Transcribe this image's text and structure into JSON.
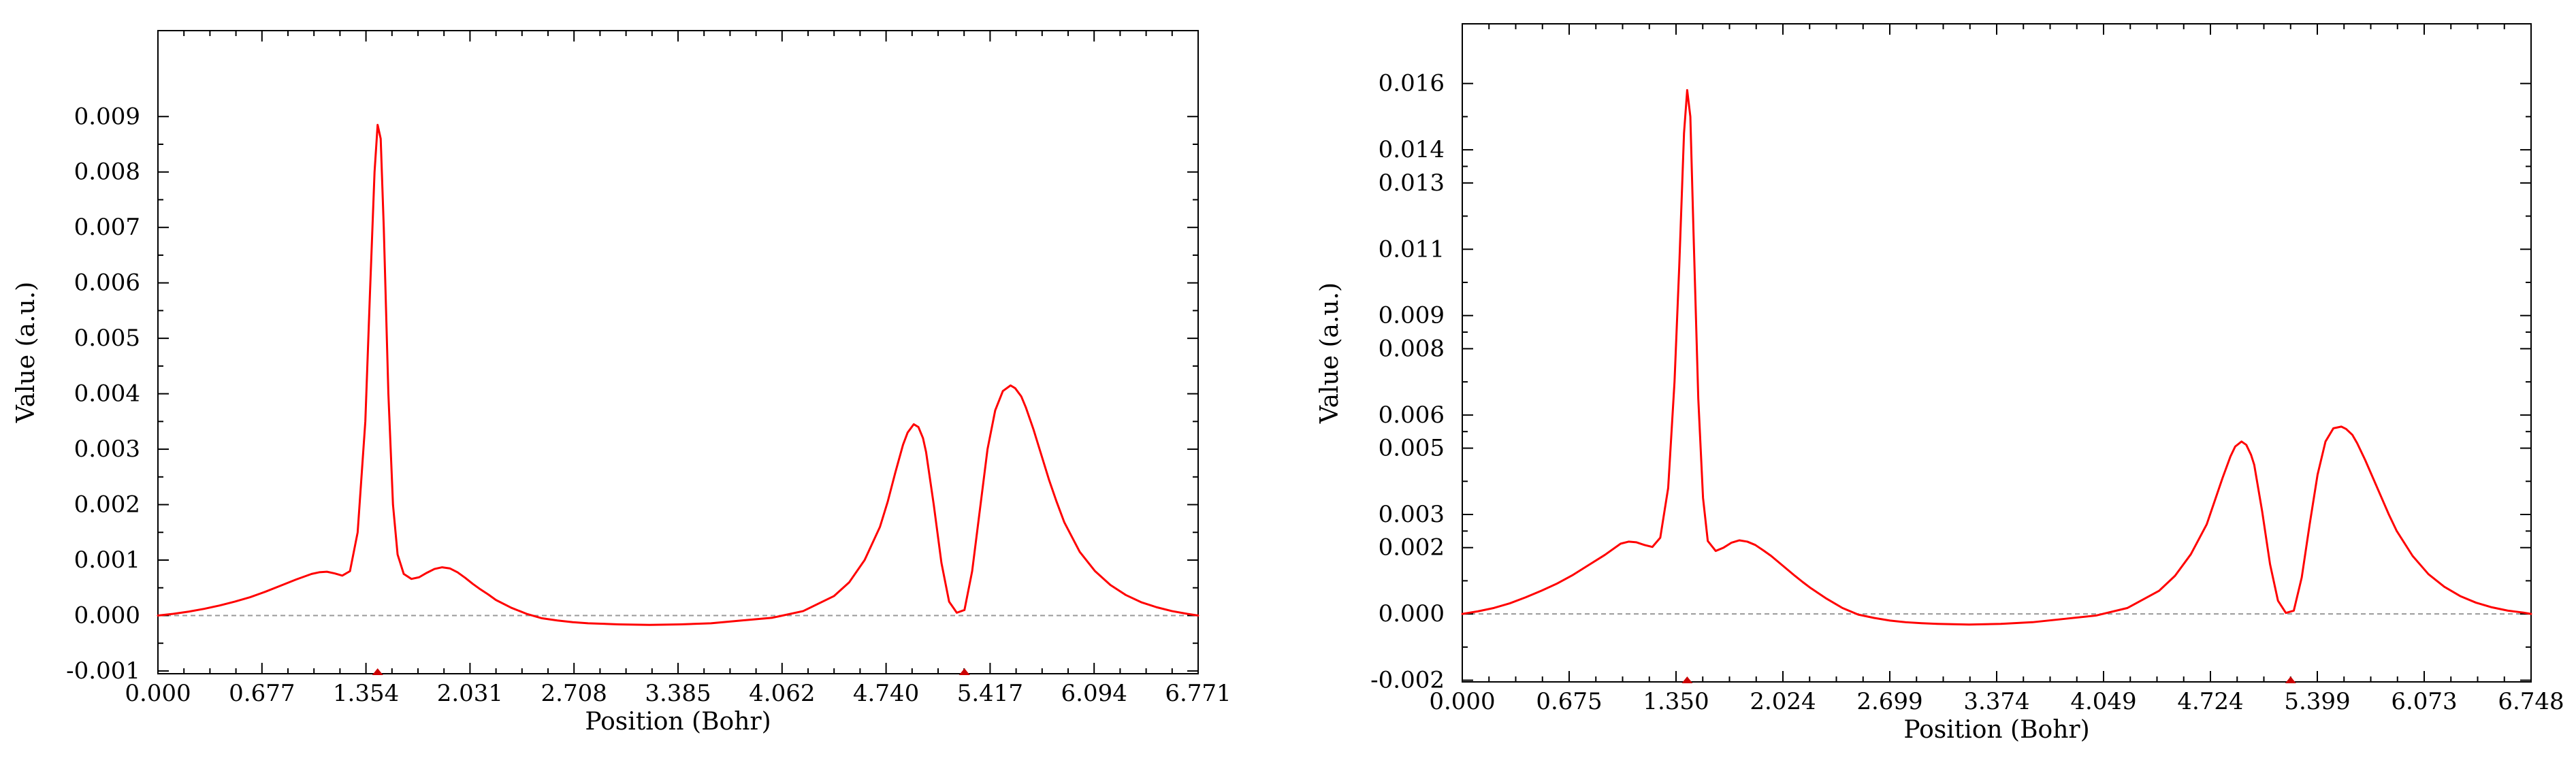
{
  "colors": {
    "curve": "#ff0000",
    "axis": "#000000",
    "zero_line": "#999999",
    "marker": "#cc0000",
    "background": "#ffffff"
  },
  "chart_data": [
    {
      "type": "line",
      "title": "",
      "xlabel": "Position (Bohr)",
      "ylabel": "Value (a.u.)",
      "xlim": [
        0,
        6.771
      ],
      "ylim": [
        -0.00105,
        0.01055
      ],
      "x_tick_labels": [
        "0.000",
        "0.677",
        "1.354",
        "2.031",
        "2.708",
        "3.385",
        "4.062",
        "4.740",
        "5.417",
        "6.094",
        "6.771"
      ],
      "y_ticks": [
        -0.001,
        0.0,
        0.001,
        0.002,
        0.003,
        0.004,
        0.005,
        0.006,
        0.007,
        0.008,
        0.009
      ],
      "y_tick_labels": [
        "-0.001",
        "0.000",
        "0.001",
        "0.002",
        "0.003",
        "0.004",
        "0.005",
        "0.006",
        "0.007",
        "0.008",
        "0.009"
      ],
      "zero_line": 0.0,
      "atom_markers_x": [
        1.43,
        5.25
      ],
      "series": [
        {
          "name": "profile",
          "x": [
            0.0,
            0.1,
            0.2,
            0.3,
            0.4,
            0.5,
            0.6,
            0.7,
            0.8,
            0.9,
            1.0,
            1.05,
            1.1,
            1.15,
            1.2,
            1.25,
            1.3,
            1.35,
            1.38,
            1.41,
            1.43,
            1.45,
            1.47,
            1.5,
            1.53,
            1.56,
            1.6,
            1.65,
            1.7,
            1.75,
            1.8,
            1.85,
            1.9,
            1.95,
            2.0,
            2.05,
            2.1,
            2.15,
            2.2,
            2.3,
            2.4,
            2.5,
            2.6,
            2.7,
            2.8,
            2.9,
            3.0,
            3.2,
            3.4,
            3.6,
            3.8,
            4.0,
            4.2,
            4.4,
            4.5,
            4.6,
            4.7,
            4.75,
            4.8,
            4.85,
            4.88,
            4.92,
            4.95,
            4.98,
            5.0,
            5.05,
            5.1,
            5.15,
            5.2,
            5.25,
            5.3,
            5.35,
            5.4,
            5.45,
            5.5,
            5.55,
            5.58,
            5.62,
            5.65,
            5.7,
            5.75,
            5.8,
            5.85,
            5.9,
            6.0,
            6.1,
            6.2,
            6.3,
            6.4,
            6.5,
            6.6,
            6.7,
            6.771
          ],
          "y": [
            0.0,
            3e-05,
            7e-05,
            0.00012,
            0.00018,
            0.00025,
            0.00033,
            0.00043,
            0.00054,
            0.00065,
            0.00075,
            0.00078,
            0.00079,
            0.00076,
            0.00072,
            0.0008,
            0.0015,
            0.0035,
            0.0058,
            0.008,
            0.00885,
            0.0086,
            0.007,
            0.004,
            0.002,
            0.0011,
            0.00075,
            0.00066,
            0.00069,
            0.00077,
            0.00084,
            0.00087,
            0.00085,
            0.00078,
            0.00068,
            0.00057,
            0.00047,
            0.00038,
            0.00028,
            0.00014,
            3e-05,
            -5e-05,
            -9e-05,
            -0.00012,
            -0.00014,
            -0.00015,
            -0.00016,
            -0.00017,
            -0.00016,
            -0.00014,
            -9e-05,
            -4e-05,
            8e-05,
            0.00035,
            0.0006,
            0.001,
            0.0016,
            0.00205,
            0.00258,
            0.00308,
            0.0033,
            0.00345,
            0.0034,
            0.0032,
            0.00295,
            0.002,
            0.00095,
            0.00025,
            5e-05,
            0.0001,
            0.0008,
            0.0019,
            0.003,
            0.0037,
            0.00405,
            0.00415,
            0.0041,
            0.00395,
            0.00375,
            0.00335,
            0.0029,
            0.00245,
            0.00205,
            0.00168,
            0.00115,
            0.0008,
            0.00055,
            0.00037,
            0.00024,
            0.00015,
            8e-05,
            3e-05,
            0.0
          ]
        }
      ]
    },
    {
      "type": "line",
      "title": "",
      "xlabel": "Position (Bohr)",
      "ylabel": "Value (a.u.)",
      "xlim": [
        0,
        6.748
      ],
      "ylim": [
        -0.00205,
        0.0178
      ],
      "x_tick_labels": [
        "0.000",
        "0.675",
        "1.350",
        "2.024",
        "2.699",
        "3.374",
        "4.049",
        "4.724",
        "5.399",
        "6.073",
        "6.748"
      ],
      "y_ticks": [
        -0.002,
        0.0,
        0.002,
        0.003,
        0.005,
        0.006,
        0.008,
        0.009,
        0.011,
        0.013,
        0.014,
        0.016
      ],
      "y_tick_labels": [
        "-0.002",
        "0.000",
        "0.002",
        "0.003",
        "0.005",
        "0.006",
        "0.008",
        "0.009",
        "0.011",
        "0.013",
        "0.014",
        "0.016"
      ],
      "zero_line": 0.0,
      "atom_markers_x": [
        1.42,
        5.23
      ],
      "series": [
        {
          "name": "profile",
          "x": [
            0.0,
            0.1,
            0.2,
            0.3,
            0.4,
            0.5,
            0.6,
            0.7,
            0.8,
            0.9,
            1.0,
            1.05,
            1.1,
            1.15,
            1.2,
            1.25,
            1.3,
            1.34,
            1.37,
            1.4,
            1.42,
            1.44,
            1.46,
            1.49,
            1.52,
            1.55,
            1.6,
            1.65,
            1.7,
            1.75,
            1.8,
            1.85,
            1.9,
            1.95,
            2.0,
            2.05,
            2.1,
            2.15,
            2.2,
            2.3,
            2.4,
            2.5,
            2.6,
            2.7,
            2.8,
            2.9,
            3.0,
            3.2,
            3.4,
            3.6,
            3.8,
            4.0,
            4.2,
            4.4,
            4.5,
            4.6,
            4.7,
            4.75,
            4.8,
            4.85,
            4.88,
            4.92,
            4.95,
            4.98,
            5.0,
            5.05,
            5.1,
            5.15,
            5.2,
            5.25,
            5.3,
            5.35,
            5.4,
            5.45,
            5.5,
            5.55,
            5.58,
            5.62,
            5.65,
            5.7,
            5.75,
            5.8,
            5.85,
            5.9,
            6.0,
            6.1,
            6.2,
            6.3,
            6.4,
            6.5,
            6.6,
            6.7,
            6.748
          ],
          "y": [
            0.0,
            8e-05,
            0.00018,
            0.00032,
            0.0005,
            0.0007,
            0.00092,
            0.00118,
            0.00148,
            0.00178,
            0.00212,
            0.00218,
            0.00216,
            0.00208,
            0.00202,
            0.0023,
            0.0038,
            0.007,
            0.0105,
            0.0145,
            0.0158,
            0.015,
            0.0115,
            0.0065,
            0.0035,
            0.0022,
            0.0019,
            0.002,
            0.00215,
            0.00222,
            0.00218,
            0.00208,
            0.00192,
            0.00175,
            0.00155,
            0.00135,
            0.00115,
            0.00096,
            0.00078,
            0.00046,
            0.00018,
            -2e-05,
            -0.00012,
            -0.0002,
            -0.00025,
            -0.00028,
            -0.0003,
            -0.00032,
            -0.0003,
            -0.00025,
            -0.00015,
            -5e-05,
            0.00018,
            0.0007,
            0.00115,
            0.0018,
            0.0027,
            0.0034,
            0.0041,
            0.00475,
            0.00505,
            0.0052,
            0.0051,
            0.0048,
            0.0045,
            0.0031,
            0.0015,
            0.0004,
            3e-05,
            0.0001,
            0.0011,
            0.0027,
            0.0042,
            0.0052,
            0.0056,
            0.00565,
            0.00558,
            0.0054,
            0.00515,
            0.00465,
            0.0041,
            0.00355,
            0.003,
            0.0025,
            0.00175,
            0.0012,
            0.00082,
            0.00054,
            0.00034,
            0.0002,
            0.0001,
            4e-05,
            0.0
          ]
        }
      ]
    }
  ]
}
